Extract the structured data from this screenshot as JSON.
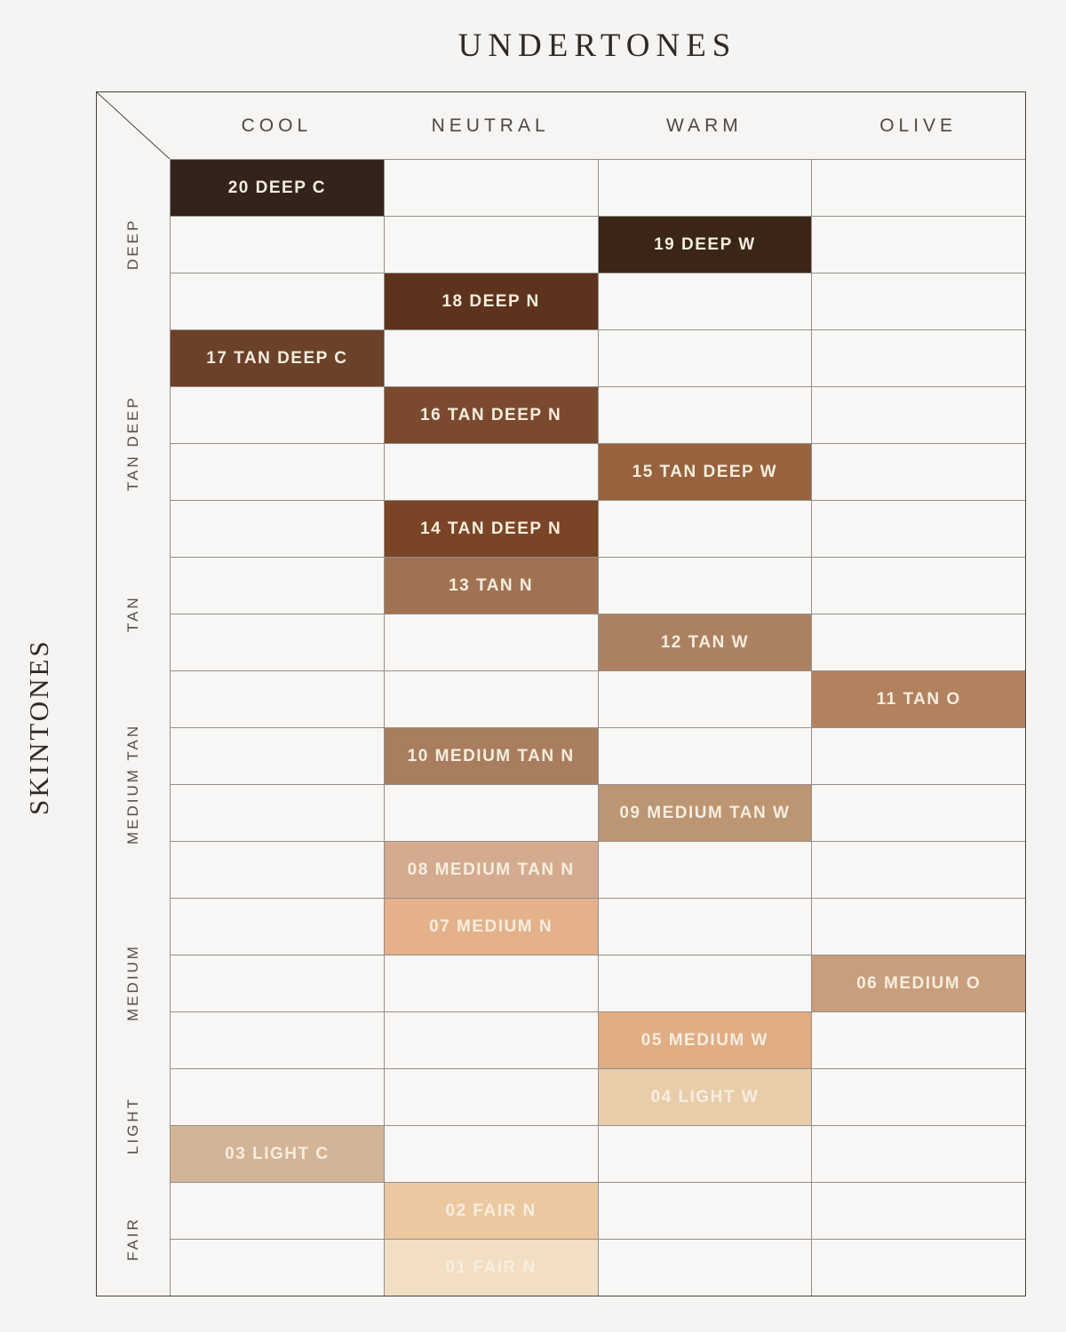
{
  "titles": {
    "top": "UNDERTONES",
    "side": "SKINTONES"
  },
  "colors": {
    "page_background": "#f5f4f2",
    "empty_cell": "#f8f7f5",
    "grid_line": "#938f8b",
    "outer_border": "#45413d",
    "title_text": "#2e2a27",
    "header_text": "#4c4845",
    "group_text": "#55504b",
    "shade_label_text": "#f6eedf"
  },
  "chart_data": {
    "type": "heatmap",
    "title": "UNDERTONES",
    "xlabel": "UNDERTONES",
    "ylabel": "SKINTONES",
    "x_categories": [
      "COOL",
      "NEUTRAL",
      "WARM",
      "OLIVE"
    ],
    "y_groups": [
      {
        "label": "DEEP",
        "rows": 3
      },
      {
        "label": "TAN DEEP",
        "rows": 4
      },
      {
        "label": "TAN",
        "rows": 2
      },
      {
        "label": "MEDIUM TAN",
        "rows": 4
      },
      {
        "label": "MEDIUM",
        "rows": 3
      },
      {
        "label": "LIGHT",
        "rows": 2
      },
      {
        "label": "FAIR",
        "rows": 2
      }
    ],
    "cells": [
      {
        "shade": "20 DEEP C",
        "skintone": "DEEP",
        "undertone": "COOL",
        "swatch": "#33231a"
      },
      {
        "shade": "19 DEEP W",
        "skintone": "DEEP",
        "undertone": "WARM",
        "swatch": "#3a2517"
      },
      {
        "shade": "18 DEEP N",
        "skintone": "DEEP",
        "undertone": "NEUTRAL",
        "swatch": "#5e331e"
      },
      {
        "shade": "17 TAN DEEP C",
        "skintone": "TAN DEEP",
        "undertone": "COOL",
        "swatch": "#6b4129"
      },
      {
        "shade": "16 TAN DEEP N",
        "skintone": "TAN DEEP",
        "undertone": "NEUTRAL",
        "swatch": "#7b4a2e"
      },
      {
        "shade": "15 TAN DEEP W",
        "skintone": "TAN DEEP",
        "undertone": "WARM",
        "swatch": "#97623d"
      },
      {
        "shade": "14 TAN DEEP N",
        "skintone": "TAN DEEP",
        "undertone": "NEUTRAL",
        "swatch": "#7a4426"
      },
      {
        "shade": "13 TAN N",
        "skintone": "TAN",
        "undertone": "NEUTRAL",
        "swatch": "#a17252"
      },
      {
        "shade": "12 TAN W",
        "skintone": "TAN",
        "undertone": "WARM",
        "swatch": "#ac8162"
      },
      {
        "shade": "11 TAN O",
        "skintone": "MEDIUM TAN",
        "undertone": "OLIVE",
        "swatch": "#b2815e"
      },
      {
        "shade": "10 MEDIUM TAN N",
        "skintone": "MEDIUM TAN",
        "undertone": "NEUTRAL",
        "swatch": "#a87e5f"
      },
      {
        "shade": "09 MEDIUM TAN W",
        "skintone": "MEDIUM TAN",
        "undertone": "WARM",
        "swatch": "#bc9572"
      },
      {
        "shade": "08 MEDIUM TAN N",
        "skintone": "MEDIUM TAN",
        "undertone": "NEUTRAL",
        "swatch": "#d4ab8f"
      },
      {
        "shade": "07 MEDIUM N",
        "skintone": "MEDIUM",
        "undertone": "NEUTRAL",
        "swatch": "#e4b18a"
      },
      {
        "shade": "06 MEDIUM O",
        "skintone": "MEDIUM",
        "undertone": "OLIVE",
        "swatch": "#c89e7c"
      },
      {
        "shade": "05 MEDIUM W",
        "skintone": "MEDIUM",
        "undertone": "WARM",
        "swatch": "#e0ad84"
      },
      {
        "shade": "04 LIGHT W",
        "skintone": "LIGHT",
        "undertone": "WARM",
        "swatch": "#e9cda9"
      },
      {
        "shade": "03 LIGHT C",
        "skintone": "LIGHT",
        "undertone": "COOL",
        "swatch": "#d4b496"
      },
      {
        "shade": "02 FAIR N",
        "skintone": "FAIR",
        "undertone": "NEUTRAL",
        "swatch": "#ecc8a0"
      },
      {
        "shade": "01 FAIR N",
        "skintone": "FAIR",
        "undertone": "NEUTRAL",
        "swatch": "#f1dec3"
      }
    ]
  }
}
